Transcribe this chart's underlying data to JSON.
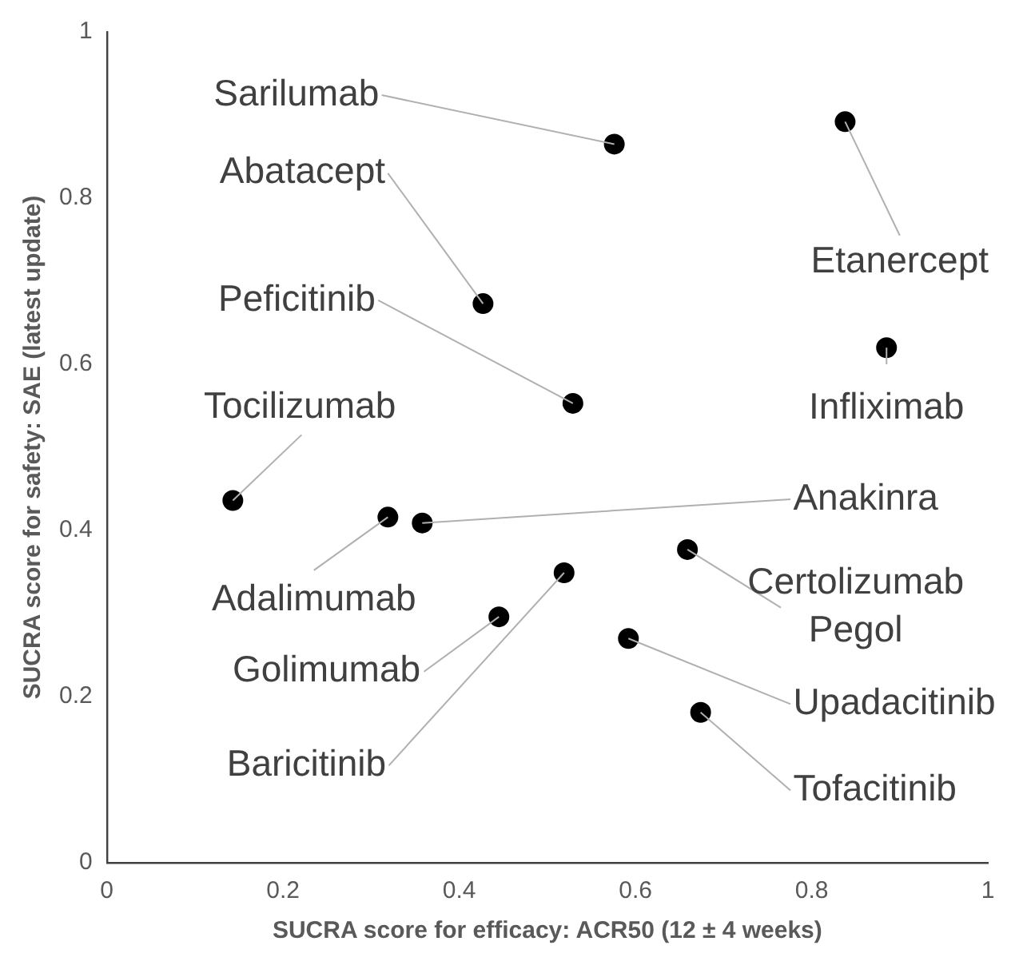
{
  "chart_data": {
    "type": "scatter",
    "xlabel": "SUCRA score for efficacy: ACR50 (12 ± 4 weeks)",
    "ylabel": "SUCRA score for safety: SAE (latest update)",
    "x": [
      0.576,
      0.838,
      0.427,
      0.529,
      0.885,
      0.143,
      0.319,
      0.358,
      0.659,
      0.519,
      0.445,
      0.592,
      0.674
    ],
    "series": [
      {
        "color": "#000000",
        "values": [
          0.865,
          0.892,
          0.673,
          0.553,
          0.62,
          0.436,
          0.416,
          0.409,
          0.377,
          0.349,
          0.296,
          0.27,
          0.181
        ]
      }
    ],
    "annotations": [
      {
        "text": "Sarilumab",
        "x": 0.576,
        "y": 0.865
      },
      {
        "text": "Etanercept",
        "x": 0.838,
        "y": 0.892
      },
      {
        "text": "Abatacept",
        "x": 0.427,
        "y": 0.673
      },
      {
        "text": "Peficitinib",
        "x": 0.529,
        "y": 0.553
      },
      {
        "text": "Infliximab",
        "x": 0.885,
        "y": 0.62
      },
      {
        "text": "Tocilizumab",
        "x": 0.143,
        "y": 0.436
      },
      {
        "text": "Adalimumab",
        "x": 0.319,
        "y": 0.416
      },
      {
        "text": "Anakinra",
        "x": 0.358,
        "y": 0.409
      },
      {
        "text": "Certolizumab Pegol",
        "x": 0.659,
        "y": 0.377
      },
      {
        "text": "Baricitinib",
        "x": 0.519,
        "y": 0.349
      },
      {
        "text": "Golimumab",
        "x": 0.445,
        "y": 0.296
      },
      {
        "text": "Upadacitinib",
        "x": 0.592,
        "y": 0.27
      },
      {
        "text": "Tofacitinib",
        "x": 0.674,
        "y": 0.181
      }
    ],
    "xlim": [
      0,
      1
    ],
    "xticks": [
      0,
      0.2,
      0.4,
      0.6,
      0.8,
      1
    ],
    "ylim": [
      0,
      1
    ],
    "yticks": [
      0,
      0.2,
      0.4,
      0.6,
      0.8,
      1
    ],
    "grid": false,
    "legend": false,
    "marker": "circle"
  }
}
